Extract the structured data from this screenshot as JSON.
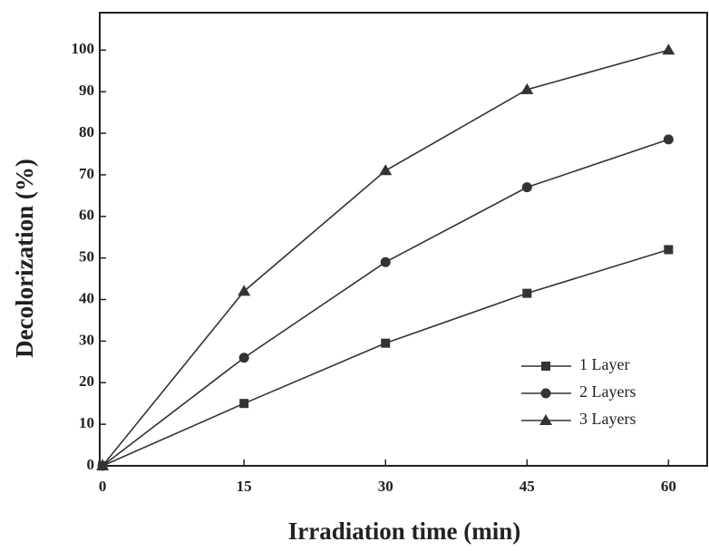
{
  "chart_data": {
    "type": "line",
    "x_label": "Irradiation time (min)",
    "y_label": "Decolorization (%)",
    "x": [
      0,
      15,
      30,
      45,
      60
    ],
    "series": [
      {
        "name": "1 Layer",
        "color": "#333333",
        "marker": "square",
        "values": [
          0,
          15,
          29.5,
          41.5,
          52
        ]
      },
      {
        "name": "2 Layers",
        "color": "#333333",
        "marker": "circle",
        "values": [
          0,
          26,
          49,
          67,
          78.5
        ]
      },
      {
        "name": "3 Layers",
        "color": "#333333",
        "marker": "triangle",
        "values": [
          0,
          42,
          71,
          90.5,
          100
        ]
      }
    ],
    "xlim": [
      -0.3,
      64.1
    ],
    "ylim": [
      0,
      109
    ],
    "xticks": [
      0,
      15,
      30,
      45,
      60
    ],
    "yticks": [
      0,
      10,
      20,
      30,
      40,
      50,
      60,
      70,
      80,
      90,
      100
    ],
    "legend": "lower right",
    "grid": false
  }
}
